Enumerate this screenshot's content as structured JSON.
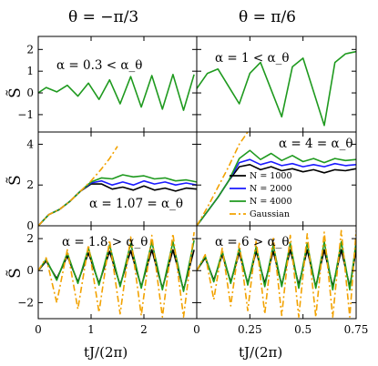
{
  "figure": {
    "col_titles": [
      "θ = −π/3",
      "θ = π/6"
    ],
    "ylabel": "S̃",
    "xlabel": "tJ/(2π)",
    "colors": {
      "N1000": "#000000",
      "N2000": "#1a1aff",
      "N4000": "#1f9a1f",
      "Gaussian": "#f2a200"
    }
  },
  "chart_data": [
    {
      "type": "line",
      "panel": "top-left",
      "annotation": "α = 0.3 < α_θ",
      "xlim": [
        0,
        3.0
      ],
      "ylim": [
        -1.8,
        2.6
      ],
      "yticks": [
        -1,
        0,
        1,
        2
      ],
      "ytick_labels": [
        "−1",
        "0",
        "1",
        "2"
      ],
      "xticks": [
        0,
        1,
        2
      ],
      "xtick_labels": [],
      "series": [
        {
          "name": "N = 4000",
          "x": [
            0,
            0.15,
            0.35,
            0.55,
            0.75,
            0.95,
            1.15,
            1.35,
            1.55,
            1.75,
            1.95,
            2.15,
            2.35,
            2.55,
            2.75,
            2.95
          ],
          "y": [
            0,
            0.25,
            0.05,
            0.35,
            -0.15,
            0.45,
            -0.3,
            0.6,
            -0.5,
            0.75,
            -0.65,
            0.8,
            -0.75,
            0.85,
            -0.8,
            0.85
          ]
        }
      ]
    },
    {
      "type": "line",
      "panel": "top-right",
      "annotation": "α = 1 < α_θ",
      "xlim": [
        0,
        0.75
      ],
      "ylim": [
        -1.8,
        2.6
      ],
      "yticks": [
        -1,
        0,
        1,
        2
      ],
      "ytick_labels": [],
      "xticks": [
        0,
        0.25,
        0.5,
        0.75
      ],
      "xtick_labels": [],
      "series": [
        {
          "name": "N = 4000",
          "x": [
            0,
            0.05,
            0.1,
            0.2,
            0.25,
            0.3,
            0.4,
            0.45,
            0.5,
            0.6,
            0.65,
            0.7,
            0.75
          ],
          "y": [
            0.2,
            0.9,
            1.1,
            -0.5,
            0.9,
            1.4,
            -1.1,
            1.2,
            1.6,
            -1.5,
            1.4,
            1.8,
            1.9
          ]
        }
      ]
    },
    {
      "type": "line",
      "panel": "middle-left",
      "annotation": "α = 1.07 = α_θ",
      "xlim": [
        0,
        3.0
      ],
      "ylim": [
        0,
        4.6
      ],
      "yticks": [
        0,
        2,
        4
      ],
      "ytick_labels": [
        "0",
        "2",
        "4"
      ],
      "xticks": [
        0,
        1,
        2
      ],
      "xtick_labels": [],
      "series": [
        {
          "name": "N = 1000",
          "x": [
            0,
            0.2,
            0.4,
            0.6,
            0.8,
            1.0,
            1.2,
            1.4,
            1.6,
            1.8,
            2.0,
            2.2,
            2.4,
            2.6,
            2.8,
            3.0
          ],
          "y": [
            0,
            0.55,
            0.8,
            1.2,
            1.7,
            2.05,
            2.05,
            1.8,
            1.9,
            1.75,
            1.95,
            1.75,
            1.85,
            1.7,
            1.85,
            1.8
          ]
        },
        {
          "name": "N = 2000",
          "x": [
            0,
            0.2,
            0.4,
            0.6,
            0.8,
            1.0,
            1.2,
            1.4,
            1.6,
            1.8,
            2.0,
            2.2,
            2.4,
            2.6,
            2.8,
            3.0
          ],
          "y": [
            0,
            0.55,
            0.8,
            1.2,
            1.7,
            2.1,
            2.2,
            2.0,
            2.15,
            2.0,
            2.2,
            2.05,
            2.15,
            2.0,
            2.1,
            2.0
          ]
        },
        {
          "name": "N = 4000",
          "x": [
            0,
            0.2,
            0.4,
            0.6,
            0.8,
            1.0,
            1.2,
            1.4,
            1.6,
            1.8,
            2.0,
            2.2,
            2.4,
            2.6,
            2.8,
            3.0
          ],
          "y": [
            0,
            0.55,
            0.8,
            1.2,
            1.7,
            2.15,
            2.35,
            2.3,
            2.5,
            2.4,
            2.45,
            2.3,
            2.35,
            2.2,
            2.25,
            2.15
          ]
        },
        {
          "name": "Gaussian",
          "x": [
            0,
            0.2,
            0.4,
            0.6,
            0.8,
            1.0,
            1.2,
            1.35,
            1.5
          ],
          "y": [
            0,
            0.55,
            0.8,
            1.2,
            1.7,
            2.2,
            2.8,
            3.3,
            3.9
          ]
        }
      ]
    },
    {
      "type": "line",
      "panel": "middle-right",
      "annotation": "α = 4 = α_θ",
      "legend": [
        "N = 1000",
        "N = 2000",
        "N = 4000",
        "Gaussian"
      ],
      "legend_placement": "right",
      "xlim": [
        0,
        0.75
      ],
      "ylim": [
        0,
        4.6
      ],
      "yticks": [
        0,
        2,
        4
      ],
      "ytick_labels": [],
      "xticks": [
        0,
        0.25,
        0.5,
        0.75
      ],
      "xtick_labels": [],
      "series": [
        {
          "name": "N = 1000",
          "x": [
            0,
            0.05,
            0.1,
            0.15,
            0.2,
            0.25,
            0.3,
            0.35,
            0.4,
            0.45,
            0.5,
            0.55,
            0.6,
            0.65,
            0.7,
            0.75
          ],
          "y": [
            0,
            0.7,
            1.4,
            2.2,
            2.9,
            3.0,
            2.75,
            2.9,
            2.7,
            2.8,
            2.65,
            2.75,
            2.6,
            2.75,
            2.7,
            2.8
          ]
        },
        {
          "name": "N = 2000",
          "x": [
            0,
            0.05,
            0.1,
            0.15,
            0.2,
            0.25,
            0.3,
            0.35,
            0.4,
            0.45,
            0.5,
            0.55,
            0.6,
            0.65,
            0.7,
            0.75
          ],
          "y": [
            0,
            0.7,
            1.4,
            2.2,
            3.1,
            3.25,
            3.0,
            3.15,
            2.95,
            3.05,
            2.9,
            3.0,
            2.9,
            3.05,
            2.95,
            3.0
          ]
        },
        {
          "name": "N = 4000",
          "x": [
            0,
            0.05,
            0.1,
            0.15,
            0.2,
            0.25,
            0.3,
            0.35,
            0.4,
            0.45,
            0.5,
            0.55,
            0.6,
            0.65,
            0.7,
            0.75
          ],
          "y": [
            0,
            0.7,
            1.4,
            2.2,
            3.3,
            3.7,
            3.25,
            3.55,
            3.2,
            3.45,
            3.15,
            3.3,
            3.1,
            3.3,
            3.2,
            3.25
          ]
        },
        {
          "name": "Gaussian",
          "x": [
            0,
            0.05,
            0.1,
            0.15,
            0.2,
            0.24
          ],
          "y": [
            0,
            0.9,
            1.9,
            2.9,
            4.0,
            4.6
          ]
        }
      ]
    },
    {
      "type": "line",
      "panel": "bottom-left",
      "annotation": "α = 1.8 > α_θ",
      "xlim": [
        0,
        3.0
      ],
      "ylim": [
        -3.0,
        2.8
      ],
      "yticks": [
        -2,
        0,
        2
      ],
      "ytick_labels": [
        "−2",
        "0",
        "2"
      ],
      "xticks": [
        0,
        1,
        2
      ],
      "xtick_labels": [
        "0",
        "1",
        "2"
      ],
      "series": [
        {
          "name": "N = 1000",
          "x": [
            0,
            0.15,
            0.35,
            0.55,
            0.75,
            0.95,
            1.15,
            1.35,
            1.55,
            1.75,
            1.95,
            2.15,
            2.35,
            2.55,
            2.75,
            2.95
          ],
          "y": [
            0,
            0.6,
            -0.5,
            0.9,
            -0.7,
            1.1,
            -0.8,
            1.2,
            -0.9,
            1.25,
            -1.0,
            1.3,
            -1.1,
            1.3,
            -1.2,
            1.3
          ]
        },
        {
          "name": "N = 4000",
          "x": [
            0,
            0.15,
            0.35,
            0.55,
            0.75,
            0.95,
            1.15,
            1.35,
            1.55,
            1.75,
            1.95,
            2.15,
            2.35,
            2.55,
            2.75,
            2.95
          ],
          "y": [
            0,
            0.7,
            -0.6,
            1.1,
            -0.8,
            1.4,
            -0.9,
            1.6,
            -1.0,
            1.7,
            -1.1,
            1.8,
            -1.2,
            1.8,
            -1.3,
            1.9
          ]
        },
        {
          "name": "Gaussian",
          "x": [
            0,
            0.15,
            0.35,
            0.55,
            0.75,
            0.95,
            1.15,
            1.35,
            1.55,
            1.75,
            1.95,
            2.15,
            2.35,
            2.55,
            2.75,
            2.95
          ],
          "y": [
            0,
            0.8,
            -2.0,
            1.3,
            -2.4,
            1.6,
            -2.6,
            1.9,
            -2.7,
            2.1,
            -2.8,
            2.2,
            -2.9,
            2.3,
            -2.9,
            2.4
          ]
        }
      ]
    },
    {
      "type": "line",
      "panel": "bottom-right",
      "annotation": "α = 6 > α_θ",
      "xlim": [
        0,
        0.75
      ],
      "ylim": [
        -3.0,
        2.8
      ],
      "yticks": [
        -2,
        0,
        2
      ],
      "ytick_labels": [],
      "xticks": [
        0,
        0.25,
        0.5,
        0.75
      ],
      "xtick_labels": [
        "0",
        "0.25",
        "0.5",
        "0.75"
      ],
      "series": [
        {
          "name": "N = 1000",
          "x": [
            0,
            0.04,
            0.08,
            0.12,
            0.16,
            0.2,
            0.24,
            0.28,
            0.32,
            0.36,
            0.4,
            0.44,
            0.48,
            0.52,
            0.56,
            0.6,
            0.64,
            0.68,
            0.72,
            0.75
          ],
          "y": [
            0,
            0.8,
            -0.6,
            1.0,
            -0.7,
            1.1,
            -0.8,
            1.2,
            -0.8,
            1.2,
            -0.9,
            1.3,
            -0.9,
            1.3,
            -1.0,
            1.3,
            -1.0,
            1.3,
            -1.0,
            1.3
          ]
        },
        {
          "name": "N = 4000",
          "x": [
            0,
            0.04,
            0.08,
            0.12,
            0.16,
            0.2,
            0.24,
            0.28,
            0.32,
            0.36,
            0.4,
            0.44,
            0.48,
            0.52,
            0.56,
            0.6,
            0.64,
            0.68,
            0.72,
            0.75
          ],
          "y": [
            0,
            0.9,
            -0.7,
            1.2,
            -0.8,
            1.4,
            -0.9,
            1.5,
            -1.0,
            1.6,
            -1.0,
            1.7,
            -1.1,
            1.7,
            -1.1,
            1.8,
            -1.2,
            1.8,
            -1.2,
            1.8
          ]
        },
        {
          "name": "Gaussian",
          "x": [
            0,
            0.04,
            0.08,
            0.12,
            0.16,
            0.2,
            0.24,
            0.28,
            0.32,
            0.36,
            0.4,
            0.44,
            0.48,
            0.52,
            0.56,
            0.6,
            0.64,
            0.68,
            0.72,
            0.75
          ],
          "y": [
            0,
            1.0,
            -1.8,
            1.4,
            -2.2,
            1.7,
            -2.5,
            1.9,
            -2.7,
            2.1,
            -2.8,
            2.2,
            -2.9,
            2.3,
            -2.9,
            2.4,
            -2.9,
            2.5,
            -2.9,
            2.5
          ]
        }
      ]
    }
  ]
}
